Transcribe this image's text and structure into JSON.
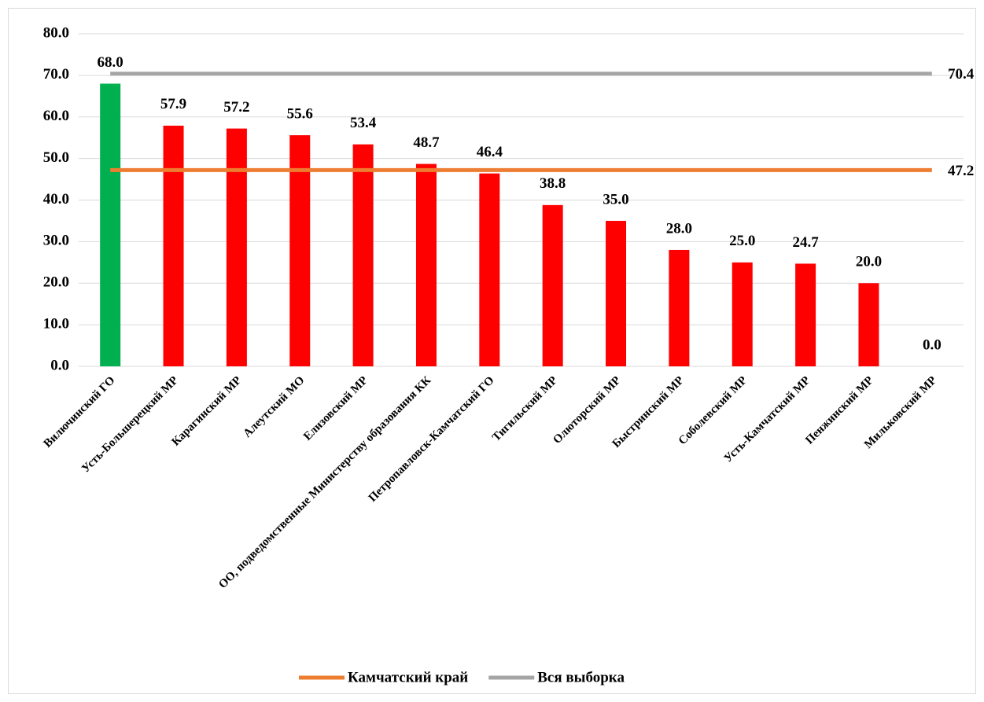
{
  "chart_data": {
    "type": "bar",
    "categories": [
      "Вилючинский ГО",
      "Усть-Большерецкий МР",
      "Карагинский МР",
      "Алеутский МО",
      "Елизовский МР",
      "ОО, подведомственные Министерству образования КК",
      "Петропавловск-Камчатский ГО",
      "Тигильский МР",
      "Олюторский МР",
      "Быстринский МР",
      "Соболевский МР",
      "Усть-Камчатский МР",
      "Пенжинский МР",
      "Мильковский МР"
    ],
    "values": [
      68.0,
      57.9,
      57.2,
      55.6,
      53.4,
      48.7,
      46.4,
      38.8,
      35.0,
      28.0,
      25.0,
      24.7,
      20.0,
      0.0
    ],
    "value_labels": [
      "68.0",
      "57.9",
      "57.2",
      "55.6",
      "53.4",
      "48.7",
      "46.4",
      "38.8",
      "35.0",
      "28.0",
      "25.0",
      "24.7",
      "20.0",
      "0.0"
    ],
    "colors": [
      "#00b050",
      "#ff0000",
      "#ff0000",
      "#ff0000",
      "#ff0000",
      "#ff0000",
      "#ff0000",
      "#ff0000",
      "#ff0000",
      "#ff0000",
      "#ff0000",
      "#ff0000",
      "#ff0000",
      "#ff0000"
    ],
    "reference_lines": [
      {
        "name": "Камчатский край",
        "color": "#ed7d31",
        "value": 47.2
      },
      {
        "name": "Вся выборка",
        "color": "#a5a5a5",
        "value": 70.4
      }
    ],
    "ylim": [
      0,
      80
    ],
    "yticks": [
      {
        "value": 0,
        "label": "0.0"
      },
      {
        "value": 10,
        "label": "10.0"
      },
      {
        "value": 20,
        "label": "20.0"
      },
      {
        "value": 30,
        "label": "30.0"
      },
      {
        "value": 40,
        "label": "40.0"
      },
      {
        "value": 50,
        "label": "50.0"
      },
      {
        "value": 60,
        "label": "60.0"
      },
      {
        "value": 70,
        "label": "70.0"
      },
      {
        "value": 80,
        "label": "80.0"
      }
    ],
    "grid": true,
    "legend": "bottom"
  }
}
